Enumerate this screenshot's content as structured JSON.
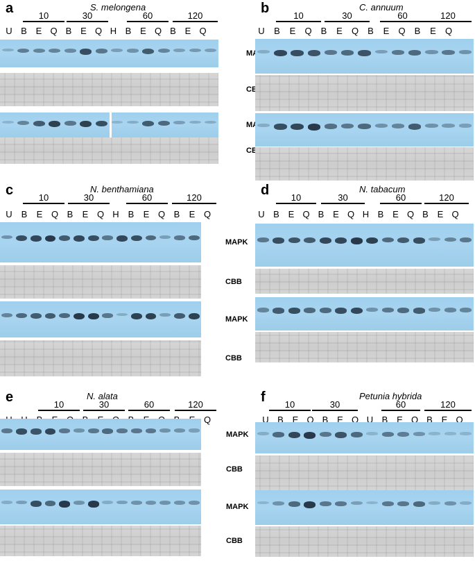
{
  "labels": {
    "mapk": "MAPK",
    "cbb": "CBB"
  },
  "panels": [
    {
      "letter": "a",
      "species": "S. melongena",
      "times": [
        "10",
        "30",
        "60",
        "120"
      ],
      "lanes": [
        "U",
        "B",
        "E",
        "Q",
        "B",
        "E",
        "Q",
        "H",
        "B",
        "E",
        "Q",
        "B",
        "E",
        "Q"
      ],
      "blots": [
        {
          "type": "mapk",
          "bands": [
            0.1,
            0.45,
            0.4,
            0.4,
            0.35,
            0.8,
            0.5,
            0.2,
            0.3,
            0.7,
            0.4,
            0.2,
            0.25,
            0.2
          ]
        },
        {
          "type": "cbb"
        },
        {
          "type": "mapk",
          "bands": [
            0.05,
            0.4,
            0.7,
            0.9,
            0.5,
            0.9,
            0.8,
            0.05,
            0.1,
            0.7,
            0.6,
            0.2,
            0.1,
            0.1
          ],
          "split": true
        },
        {
          "type": "cbb"
        }
      ]
    },
    {
      "letter": "b",
      "species": "C. annuum",
      "times": [
        "10",
        "30",
        "60",
        "120"
      ],
      "lanes": [
        "U",
        "B",
        "E",
        "Q",
        "B",
        "E",
        "Q",
        "B",
        "E",
        "Q",
        "B",
        "E",
        "Q"
      ],
      "blots": [
        {
          "type": "mapk",
          "bands": [
            0.1,
            0.85,
            0.8,
            0.75,
            0.5,
            0.6,
            0.75,
            0.2,
            0.5,
            0.6,
            0.3,
            0.5,
            0.3
          ]
        },
        {
          "type": "cbb"
        },
        {
          "type": "mapk",
          "bands": [
            0.1,
            0.8,
            0.85,
            0.95,
            0.55,
            0.5,
            0.6,
            0.3,
            0.4,
            0.7,
            0.3,
            0.25,
            0.2
          ]
        },
        {
          "type": "cbb"
        }
      ]
    },
    {
      "letter": "c",
      "species": "N. benthamiana",
      "times": [
        "10",
        "30",
        "60",
        "120"
      ],
      "lanes": [
        "U",
        "B",
        "E",
        "Q",
        "B",
        "E",
        "Q",
        "H",
        "B",
        "E",
        "Q",
        "B",
        "E",
        "Q"
      ],
      "blots": [
        {
          "type": "mapk",
          "bands": [
            0.3,
            0.8,
            0.85,
            0.95,
            0.7,
            0.85,
            0.8,
            0.5,
            0.85,
            0.8,
            0.6,
            0.2,
            0.5,
            0.6
          ]
        },
        {
          "type": "cbb"
        },
        {
          "type": "mapk",
          "bands": [
            0.4,
            0.6,
            0.7,
            0.7,
            0.6,
            0.95,
            0.95,
            0.5,
            0.1,
            0.9,
            0.9,
            0.2,
            0.7,
            0.9
          ]
        },
        {
          "type": "cbb"
        }
      ]
    },
    {
      "letter": "d",
      "species": "N. tabacum",
      "times": [
        "10",
        "30",
        "60",
        "120"
      ],
      "lanes": [
        "U",
        "B",
        "E",
        "Q",
        "B",
        "E",
        "Q",
        "H",
        "B",
        "E",
        "Q",
        "B",
        "E",
        "Q"
      ],
      "blots": [
        {
          "type": "mapk",
          "bands": [
            0.5,
            0.8,
            0.75,
            0.7,
            0.85,
            0.85,
            0.95,
            0.9,
            0.6,
            0.7,
            0.8,
            0.2,
            0.4,
            0.5
          ]
        },
        {
          "type": "cbb"
        },
        {
          "type": "mapk",
          "bands": [
            0.4,
            0.7,
            0.8,
            0.6,
            0.6,
            0.8,
            0.85,
            0.3,
            0.5,
            0.6,
            0.7,
            0.3,
            0.4,
            0.4
          ]
        },
        {
          "type": "cbb"
        }
      ]
    },
    {
      "letter": "e",
      "species": "N. alata",
      "times": [
        "10",
        "30",
        "60",
        "120"
      ],
      "lanes": [
        "U",
        "H",
        "B",
        "E",
        "Q",
        "B",
        "E",
        "Q",
        "B",
        "E",
        "Q",
        "B",
        "E",
        "Q"
      ],
      "blots": [
        {
          "type": "mapk",
          "bands": [
            0.5,
            0.8,
            0.75,
            0.85,
            0.5,
            0.3,
            0.5,
            0.6,
            0.5,
            0.5,
            0.5,
            0.3,
            0.3,
            0.2
          ]
        },
        {
          "type": "cbb"
        },
        {
          "type": "mapk",
          "bands": [
            0.1,
            0.2,
            0.8,
            0.6,
            0.95,
            0.3,
            0.95,
            0.1,
            0.2,
            0.3,
            0.3,
            0.3,
            0.3,
            0.3
          ]
        },
        {
          "type": "cbb"
        }
      ]
    },
    {
      "letter": "f",
      "species": "Petunia hybrida",
      "times": [
        "10",
        "30",
        "60",
        "120"
      ],
      "lanes": [
        "U",
        "B",
        "E",
        "Q",
        "B",
        "E",
        "Q",
        "U",
        "B",
        "E",
        "Q",
        "B",
        "E",
        "Q"
      ],
      "blots": [
        {
          "type": "mapk",
          "bands": [
            0.1,
            0.6,
            0.85,
            0.95,
            0.5,
            0.75,
            0.6,
            0.05,
            0.5,
            0.45,
            0.3,
            0.05,
            0.05,
            0.05
          ]
        },
        {
          "type": "cbb"
        },
        {
          "type": "mapk",
          "bands": [
            0.05,
            0.3,
            0.6,
            0.95,
            0.5,
            0.5,
            0.2,
            0.05,
            0.5,
            0.5,
            0.6,
            0.1,
            0.3,
            0.1
          ]
        },
        {
          "type": "cbb"
        }
      ]
    }
  ]
}
